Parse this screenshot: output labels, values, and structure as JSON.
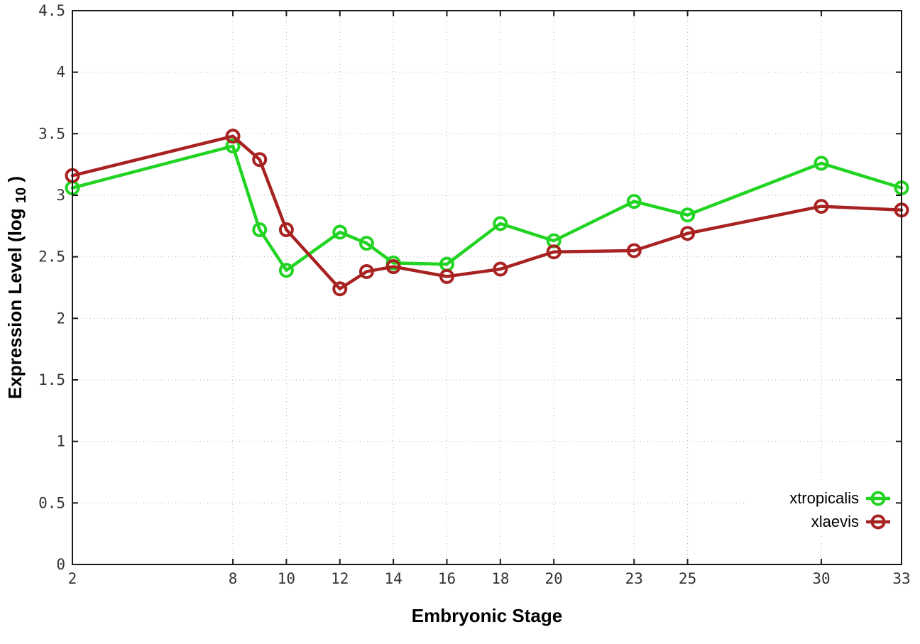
{
  "chart_data": {
    "type": "line",
    "title": "",
    "xlabel": "Embryonic Stage",
    "ylabel": "Expression Level (log10)",
    "ylabel_parts": {
      "main": "Expression Level (log",
      "sub": "10",
      "close": ")"
    },
    "xlim": [
      2,
      33
    ],
    "ylim": [
      0,
      4.5
    ],
    "xticks": [
      2,
      8,
      10,
      12,
      14,
      16,
      18,
      20,
      23,
      25,
      30,
      33
    ],
    "yticks": [
      0,
      0.5,
      1,
      1.5,
      2,
      2.5,
      3,
      3.5,
      4,
      4.5
    ],
    "grid": true,
    "legend_position": "inside-bottom-right",
    "marker": "open-circle",
    "x": [
      2,
      8,
      9,
      10,
      12,
      13,
      14,
      16,
      18,
      20,
      23,
      25,
      30,
      33
    ],
    "series": [
      {
        "name": "xtropicalis",
        "color": "#22D422",
        "values": [
          3.06,
          3.4,
          2.72,
          2.39,
          2.7,
          2.61,
          2.45,
          2.44,
          2.77,
          2.63,
          2.95,
          2.84,
          3.26,
          3.06
        ]
      },
      {
        "name": "xlaevis",
        "color": "#A82222",
        "values": [
          3.16,
          3.48,
          3.29,
          2.72,
          2.24,
          2.38,
          2.42,
          2.34,
          2.4,
          2.54,
          2.55,
          2.69,
          2.91,
          2.88
        ]
      }
    ],
    "colors": {
      "border": "#1a1a1a",
      "grid": "#b5b5b5",
      "tick_text": "#333333",
      "background": "#ffffff"
    }
  }
}
